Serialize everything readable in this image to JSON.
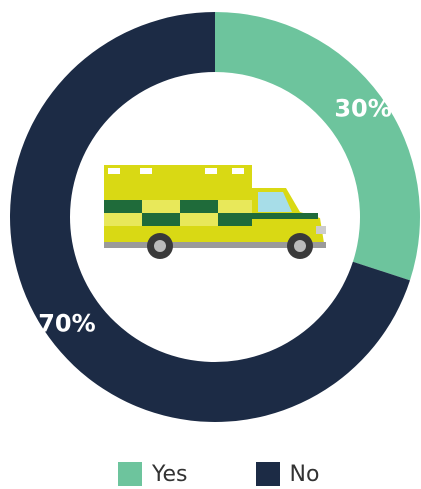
{
  "chart_data": {
    "type": "pie",
    "categories": [
      "Yes",
      "No"
    ],
    "values": [
      30,
      70
    ],
    "value_labels": [
      "30%",
      "70%"
    ],
    "colors": [
      "#6dc49d",
      "#1c2b45"
    ],
    "donut": true,
    "legend_position": "bottom",
    "center_icon": "ambulance-icon"
  },
  "colors": {
    "ambulance_body": "#d9d914",
    "ambulance_stripe": "#1f6b3a",
    "ambulance_window": "#a7dde8",
    "wheel": "#3a3a3a"
  }
}
